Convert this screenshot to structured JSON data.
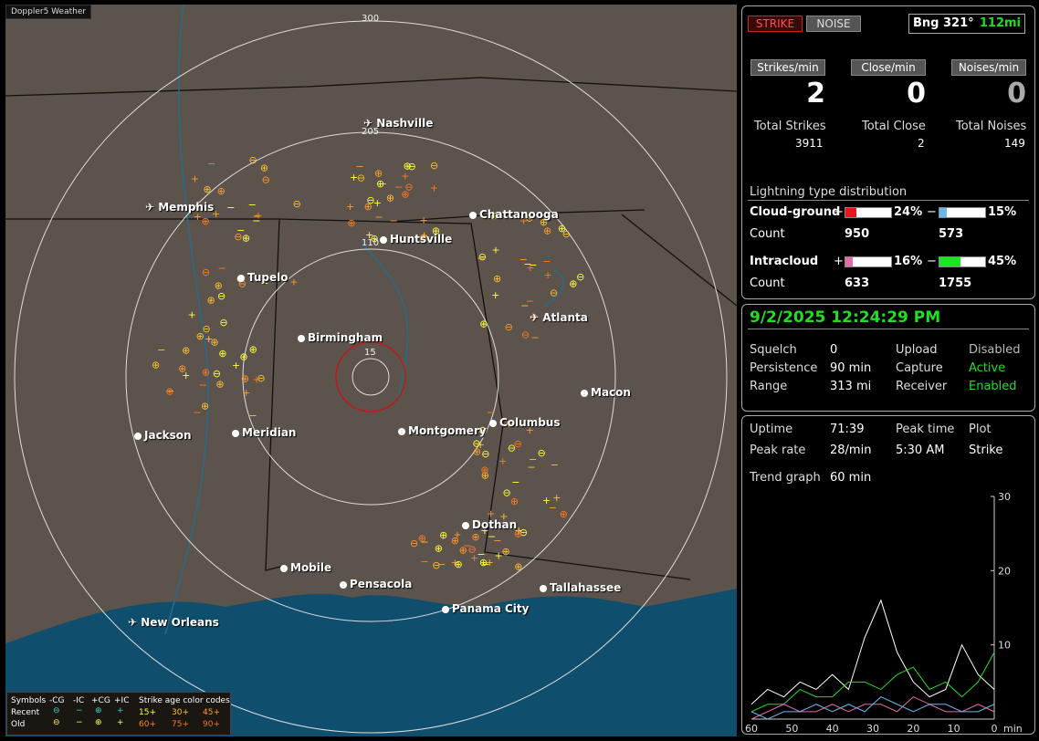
{
  "app_title": "Doppler5 Weather",
  "map": {
    "rings": [
      {
        "label": "300"
      },
      {
        "label": "205"
      },
      {
        "label": "110"
      },
      {
        "label": "15"
      }
    ],
    "cities": [
      {
        "name": "Nashville",
        "airport": true
      },
      {
        "name": "Memphis",
        "airport": true
      },
      {
        "name": "Huntsville",
        "airport": false
      },
      {
        "name": "Chattanooga",
        "airport": false
      },
      {
        "name": "Tupelo",
        "airport": false
      },
      {
        "name": "Atlanta",
        "airport": true
      },
      {
        "name": "Birmingham",
        "airport": false
      },
      {
        "name": "Macon",
        "airport": false
      },
      {
        "name": "Jackson",
        "airport": false
      },
      {
        "name": "Meridian",
        "airport": false
      },
      {
        "name": "Montgomery",
        "airport": false
      },
      {
        "name": "Columbus",
        "airport": false
      },
      {
        "name": "Dothan",
        "airport": false
      },
      {
        "name": "Mobile",
        "airport": false
      },
      {
        "name": "Pensacola",
        "airport": false
      },
      {
        "name": "Tallahassee",
        "airport": false
      },
      {
        "name": "Panama City",
        "airport": false
      },
      {
        "name": "New Orleans",
        "airport": true
      }
    ],
    "legend": {
      "symbols_label": "Symbols",
      "headers": [
        "-CG",
        "-IC",
        "+CG",
        "+IC"
      ],
      "recent_label": "Recent",
      "old_label": "Old",
      "age_title": "Strike age color codes",
      "recent_ages": [
        "15+",
        "30+",
        "45+"
      ],
      "old_ages": [
        "60+",
        "75+",
        "90+"
      ]
    }
  },
  "top": {
    "strike_btn": "STRIKE",
    "noise_btn": "NOISE",
    "bearing_label": "Bng 321°",
    "bearing_dist": "112mi",
    "rates": [
      {
        "label": "Strikes/min",
        "value": "2",
        "color": "#ffffff"
      },
      {
        "label": "Close/min",
        "value": "0",
        "color": "#ffffff"
      },
      {
        "label": "Noises/min",
        "value": "0",
        "color": "#aaaaaa"
      }
    ],
    "totals": [
      {
        "label": "Total Strikes",
        "value": "3911"
      },
      {
        "label": "Total Close",
        "value": "2"
      },
      {
        "label": "Total Noises",
        "value": "149"
      }
    ],
    "dist_title": "Lightning type distribution",
    "cg_label": "Cloud-ground",
    "ic_label": "Intracloud",
    "count_label": "Count",
    "cg_pos": {
      "sign": "+",
      "pct": "24%",
      "count": "950",
      "fill": 0.24,
      "color": "#e8141e"
    },
    "cg_neg": {
      "sign": "−",
      "pct": "15%",
      "count": "573",
      "fill": 0.15,
      "color": "#6ab8f0"
    },
    "ic_pos": {
      "sign": "+",
      "pct": "16%",
      "count": "633",
      "fill": 0.16,
      "color": "#e46aa8"
    },
    "ic_neg": {
      "sign": "−",
      "pct": "45%",
      "count": "1755",
      "fill": 0.45,
      "color": "#1ee61e"
    }
  },
  "status": {
    "datetime": "9/2/2025 12:24:29 PM",
    "rows": [
      {
        "l1": "Squelch",
        "v1": "0",
        "l2": "Upload",
        "v2": "Disabled",
        "c2": "#bbbbbb"
      },
      {
        "l1": "Persistence",
        "v1": "90 min",
        "l2": "Capture",
        "v2": "Active",
        "c2": "#22dd22"
      },
      {
        "l1": "Range",
        "v1": "313 mi",
        "l2": "Receiver",
        "v2": "Enabled",
        "c2": "#22dd22"
      }
    ]
  },
  "stats": {
    "uptime_label": "Uptime",
    "uptime": "71:39",
    "peaktime_label": "Peak time",
    "plot_label": "Plot",
    "peakrate_label": "Peak rate",
    "peakrate": "28/min",
    "peaktime": "5:30 AM",
    "plot": "Strike",
    "trend_label": "Trend graph",
    "trend": "60 min"
  },
  "chart_data": {
    "type": "line",
    "xlabel": "min",
    "x_ticks": [
      "60",
      "50",
      "40",
      "30",
      "20",
      "10",
      "0"
    ],
    "y_ticks": [
      "30",
      "20",
      "10"
    ],
    "ylim": [
      0,
      30
    ],
    "x": [
      60,
      56,
      52,
      48,
      44,
      40,
      36,
      32,
      28,
      24,
      20,
      16,
      12,
      8,
      4,
      0
    ],
    "series": [
      {
        "color": "#ffffff",
        "values": [
          2,
          4,
          3,
          5,
          4,
          6,
          4,
          11,
          16,
          9,
          5,
          3,
          4,
          10,
          6,
          4
        ]
      },
      {
        "color": "#22dd22",
        "values": [
          1,
          2,
          2,
          4,
          3,
          3,
          5,
          5,
          4,
          6,
          7,
          4,
          5,
          3,
          5,
          9
        ]
      },
      {
        "color": "#e46aa8",
        "values": [
          0,
          1,
          2,
          1,
          1,
          2,
          1,
          2,
          2,
          1,
          3,
          2,
          1,
          1,
          2,
          1
        ]
      },
      {
        "color": "#6ab8f0",
        "values": [
          1,
          0,
          1,
          1,
          2,
          1,
          2,
          1,
          3,
          2,
          1,
          2,
          2,
          1,
          1,
          2
        ]
      }
    ]
  }
}
